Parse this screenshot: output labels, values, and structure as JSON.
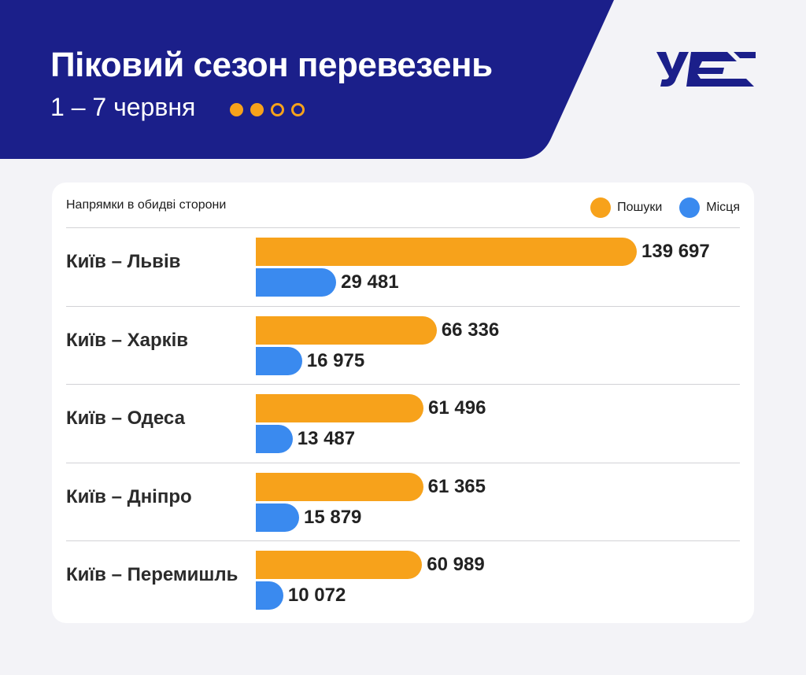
{
  "header": {
    "title": "Піковий сезон перевезень",
    "subtitle": "1 – 7 червня",
    "dots_filled": 2,
    "dots_total": 4,
    "logo_text": "УЗ"
  },
  "colors": {
    "header_bg": "#1b1f8a",
    "searches": "#f7a21b",
    "seats": "#3a8aef"
  },
  "card": {
    "caption": "Напрямки в обидві сторони"
  },
  "chart_data": {
    "type": "bar",
    "orientation": "horizontal",
    "title": "",
    "categories": [
      "Київ – Львів",
      "Київ – Харків",
      "Київ – Одеса",
      "Київ – Дніпро",
      "Київ – Перемишль"
    ],
    "series": [
      {
        "name": "Пошуки",
        "color": "#f7a21b",
        "values": [
          139697,
          66336,
          61496,
          61365,
          60989
        ],
        "labels": [
          "139 697",
          "66 336",
          "61 496",
          "61 365",
          "60 989"
        ]
      },
      {
        "name": "Місця",
        "color": "#3a8aef",
        "values": [
          29481,
          16975,
          13487,
          15879,
          10072
        ],
        "labels": [
          "29 481",
          "16 975",
          "13 487",
          "15 879",
          "10 072"
        ]
      }
    ],
    "legend_position": "top-right"
  }
}
